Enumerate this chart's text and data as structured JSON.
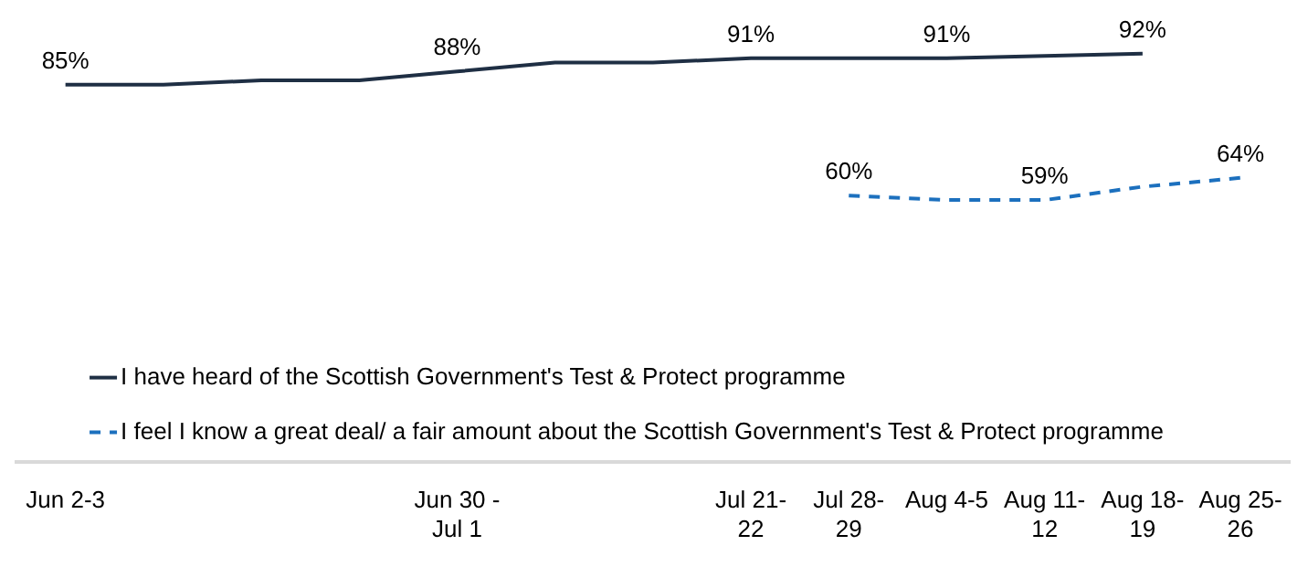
{
  "chart_data": {
    "type": "line",
    "categories": [
      "Jun 2-3",
      null,
      null,
      null,
      "Jun 30 - Jul 1",
      null,
      null,
      "Jul 21-22",
      "Jul 28-29",
      "Aug 4-5",
      "Aug 11-12",
      "Aug 18-19",
      "Aug 25-26"
    ],
    "series": [
      {
        "name": "I have heard of the Scottish Government's Test & Protect programme",
        "color": "#1f2f44",
        "line_style": "solid",
        "values": [
          85,
          85,
          86,
          86,
          88,
          90,
          90,
          91,
          91,
          91,
          91.5,
          92,
          null
        ],
        "value_labels": [
          "85%",
          null,
          null,
          null,
          "88%",
          null,
          null,
          "91%",
          null,
          "91%",
          null,
          "92%",
          null
        ]
      },
      {
        "name": "I feel I know a great deal/ a fair amount about the Scottish Government's Test & Protect programme",
        "color": "#1c70be",
        "line_style": "dashed",
        "values": [
          null,
          null,
          null,
          null,
          null,
          null,
          null,
          null,
          60,
          59,
          59,
          62,
          64
        ],
        "value_labels": [
          null,
          null,
          null,
          null,
          null,
          null,
          null,
          null,
          "60%",
          null,
          "59%",
          null,
          "64%"
        ]
      }
    ],
    "legend": "bottom left",
    "marker": "none",
    "grid": false,
    "tick_labels": "x"
  }
}
